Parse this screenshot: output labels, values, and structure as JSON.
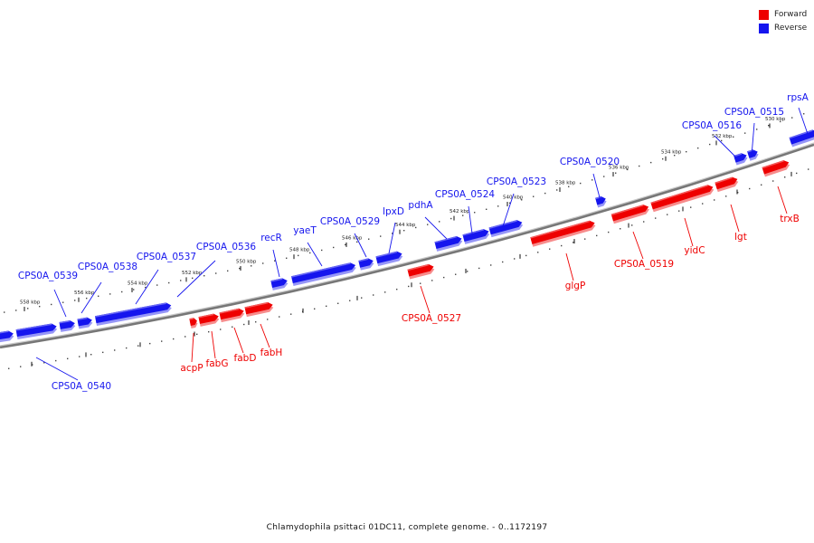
{
  "legend": {
    "forward_label": "Forward",
    "reverse_label": "Reverse",
    "forward_color": "#ee0000",
    "reverse_color": "#1515ee"
  },
  "caption": "Chlamydophila psittaci 01DC11, complete genome. - 0..1172197",
  "ticks": [
    "530 kbp",
    "532 kbp",
    "534 kbp",
    "536 kbp",
    "538 kbp",
    "540 kbp",
    "542 kbp",
    "544 kbp",
    "546 kbp",
    "548 kbp",
    "550 kbp",
    "552 kbp",
    "554 kbp",
    "556 kbp",
    "558 kbp"
  ],
  "genes": [
    {
      "name": "CPS0A_0540",
      "strand": "reverse"
    },
    {
      "name": "CPS0A_0539",
      "strand": "reverse"
    },
    {
      "name": "CPS0A_0538",
      "strand": "reverse"
    },
    {
      "name": "CPS0A_0537",
      "strand": "reverse"
    },
    {
      "name": "CPS0A_0536",
      "strand": "reverse"
    },
    {
      "name": "recR",
      "strand": "reverse"
    },
    {
      "name": "yaeT",
      "strand": "reverse"
    },
    {
      "name": "CPS0A_0529",
      "strand": "reverse"
    },
    {
      "name": "lpxD",
      "strand": "reverse"
    },
    {
      "name": "pdhA",
      "strand": "reverse"
    },
    {
      "name": "CPS0A_0524",
      "strand": "reverse"
    },
    {
      "name": "CPS0A_0523",
      "strand": "reverse"
    },
    {
      "name": "CPS0A_0520",
      "strand": "reverse"
    },
    {
      "name": "CPS0A_0516",
      "strand": "reverse"
    },
    {
      "name": "CPS0A_0515",
      "strand": "reverse"
    },
    {
      "name": "rpsA",
      "strand": "reverse"
    },
    {
      "name": "acpP",
      "strand": "forward"
    },
    {
      "name": "fabG",
      "strand": "forward"
    },
    {
      "name": "fabD",
      "strand": "forward"
    },
    {
      "name": "fabH",
      "strand": "forward"
    },
    {
      "name": "CPS0A_0527",
      "strand": "forward"
    },
    {
      "name": "glgP",
      "strand": "forward"
    },
    {
      "name": "CPS0A_0519",
      "strand": "forward"
    },
    {
      "name": "yidC",
      "strand": "forward"
    },
    {
      "name": "lgt",
      "strand": "forward"
    },
    {
      "name": "trxB",
      "strand": "forward"
    }
  ]
}
